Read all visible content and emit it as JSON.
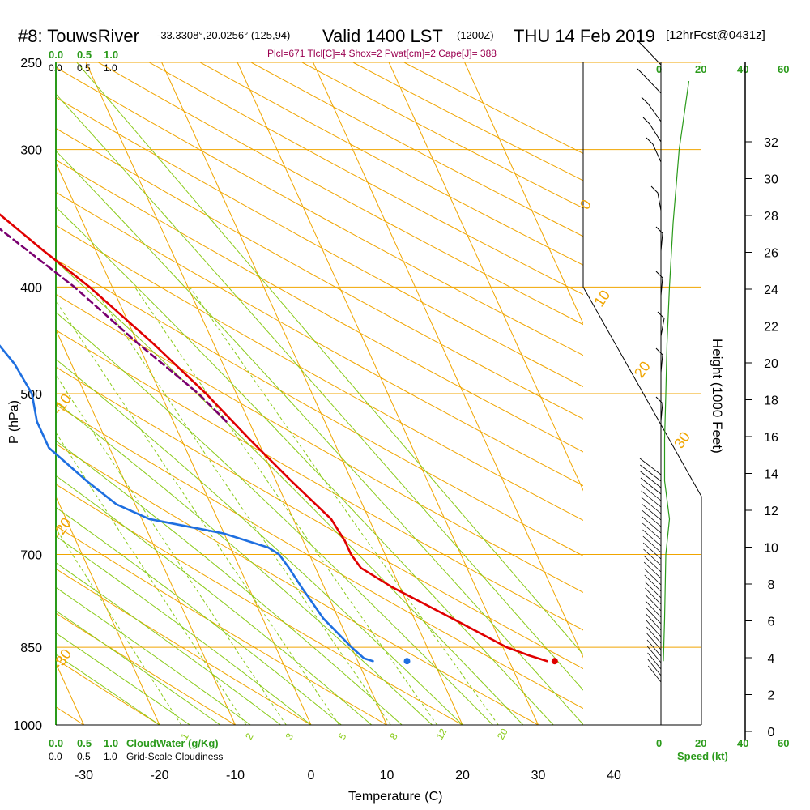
{
  "header": {
    "station": "#8: TouwsRiver",
    "coords": "-33.3308°,20.0256° (125,94)",
    "valid": "Valid 1400 LST",
    "zulu": "(1200Z)",
    "date": "THU 14 Feb 2019",
    "forecast": "[12hrFcst@0431z]",
    "params": "Plcl=671 Tlcl[C]=4 Shox=2 Pwat[cm]=2 Cape[J]= 388"
  },
  "legend": {
    "cloudwater_ticks": [
      "0.0",
      "0.5",
      "1.0"
    ],
    "cloudwater_label": "CloudWater (g/Kg)",
    "cloudiness_ticks": [
      "0.0",
      "0.5",
      "1.0"
    ],
    "cloudiness_label": "Grid-Scale Cloudiness",
    "speed_ticks": [
      "0",
      "20",
      "40",
      "60"
    ],
    "speed_label": "Speed (kt)"
  },
  "colors": {
    "temperature": "#e00000",
    "dewpoint": "#1e6fe0",
    "parcel": "#7a0070",
    "isotherm": "#f0a500",
    "dry_adiabat": "#f0a500",
    "moist_adiabat": "#8acb1a",
    "mixing_ratio": "#8acb1a",
    "wind_speed": "#2a9a1a",
    "cloudwater": "#2a9a1a"
  },
  "chart_data": {
    "type": "skew-t",
    "xlabel": "Temperature (C)",
    "ylabel": "P (hPa)",
    "y2label": "Height (1000 Feet)",
    "x_ticks": [
      -30,
      -20,
      -10,
      0,
      10,
      20,
      30,
      40
    ],
    "pressure_ticks": [
      250,
      300,
      400,
      500,
      700,
      850,
      1000
    ],
    "height_ticks": [
      0,
      2,
      4,
      6,
      8,
      10,
      12,
      14,
      16,
      18,
      20,
      22,
      24,
      26,
      28,
      30,
      32
    ],
    "xlim": [
      -33,
      52
    ],
    "plim": [
      1000,
      250
    ],
    "isotherm_labels": [
      -30,
      -20,
      -10,
      0,
      10,
      20,
      30
    ],
    "mixing_ratio_labels": [
      "1",
      "2",
      "3",
      "5",
      "8",
      "12",
      "20"
    ],
    "surface_pressure": 875,
    "surface_temperature": 36,
    "surface_dewpoint": 16.5,
    "temperature_profile": [
      [
        875,
        35
      ],
      [
        865,
        33
      ],
      [
        850,
        30.5
      ],
      [
        800,
        25
      ],
      [
        750,
        19
      ],
      [
        720,
        16
      ],
      [
        700,
        15.5
      ],
      [
        680,
        15.5
      ],
      [
        650,
        15
      ],
      [
        600,
        12
      ],
      [
        550,
        9
      ],
      [
        500,
        6
      ],
      [
        450,
        2
      ],
      [
        400,
        -3
      ],
      [
        370,
        -7
      ],
      [
        340,
        -11
      ],
      [
        320,
        -13
      ],
      [
        300,
        -16
      ],
      [
        270,
        -20
      ]
    ],
    "dewpoint_profile": [
      [
        875,
        12
      ],
      [
        870,
        11
      ],
      [
        860,
        10.5
      ],
      [
        850,
        10
      ],
      [
        800,
        8
      ],
      [
        750,
        7
      ],
      [
        720,
        6.5
      ],
      [
        700,
        6
      ],
      [
        690,
        5
      ],
      [
        670,
        0
      ],
      [
        650,
        -9
      ],
      [
        630,
        -12.5
      ],
      [
        600,
        -15
      ],
      [
        560,
        -18
      ],
      [
        530,
        -18
      ],
      [
        500,
        -17
      ],
      [
        470,
        -17.5
      ],
      [
        440,
        -19
      ],
      [
        400,
        -22
      ],
      [
        370,
        -26
      ],
      [
        340,
        -33
      ],
      [
        320,
        -38
      ],
      [
        300,
        -44
      ],
      [
        290,
        -40
      ],
      [
        280,
        -40
      ],
      [
        270,
        -39
      ]
    ],
    "parcel_profile": [
      [
        530,
        7
      ],
      [
        500,
        5
      ],
      [
        450,
        0
      ],
      [
        400,
        -5
      ],
      [
        350,
        -12
      ],
      [
        300,
        -20
      ]
    ],
    "wind_speed_profile": [
      [
        875,
        2
      ],
      [
        800,
        3
      ],
      [
        700,
        4
      ],
      [
        650,
        7
      ],
      [
        600,
        3
      ],
      [
        550,
        3
      ],
      [
        500,
        4
      ],
      [
        450,
        5
      ],
      [
        400,
        7
      ],
      [
        350,
        10
      ],
      [
        300,
        15
      ],
      [
        260,
        23
      ]
    ],
    "wind_speed_xlim": [
      0,
      60
    ]
  }
}
